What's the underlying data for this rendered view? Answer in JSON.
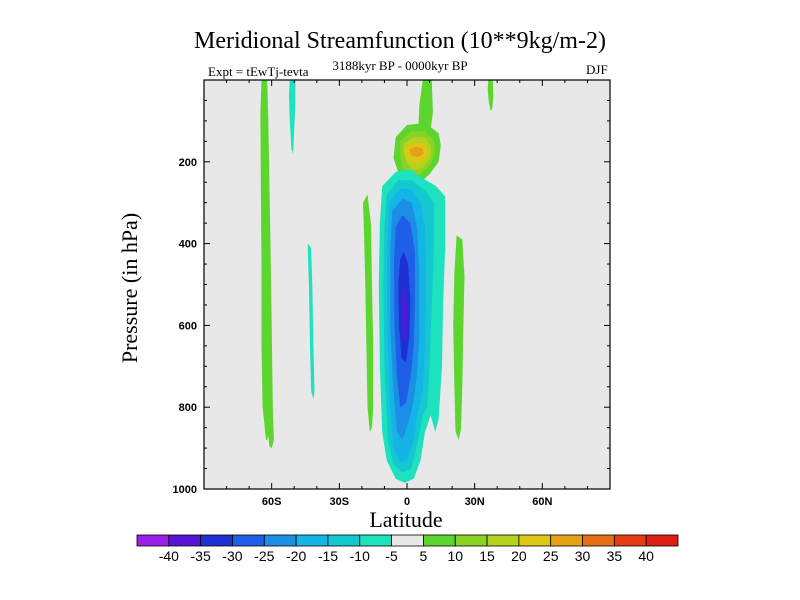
{
  "chart_data": {
    "type": "contour",
    "title": "Meridional Streamfunction (10**9kg/m-2)",
    "subtitle_left": "Expt = tEwTj-tevta",
    "subtitle_center": "3188kyr BP - 0000kyr BP",
    "subtitle_right": "DJF",
    "xlabel": "Latitude",
    "ylabel": "Pressure (in hPa)",
    "xlim": [
      -90,
      90
    ],
    "ylim": [
      1000,
      0
    ],
    "xticks": [
      {
        "value": -60,
        "label": "60S"
      },
      {
        "value": -30,
        "label": "30S"
      },
      {
        "value": 0,
        "label": "0"
      },
      {
        "value": 30,
        "label": "30N"
      },
      {
        "value": 60,
        "label": "60N"
      }
    ],
    "yticks": [
      {
        "value": 200,
        "label": "200"
      },
      {
        "value": 400,
        "label": "400"
      },
      {
        "value": 600,
        "label": "600"
      },
      {
        "value": 800,
        "label": "800"
      },
      {
        "value": 1000,
        "label": "1000"
      }
    ],
    "background_color": "#e8e8e8",
    "colorbar": {
      "levels": [
        "-40",
        "-35",
        "-30",
        "-25",
        "-20",
        "-15",
        "-10",
        "-5",
        "5",
        "10",
        "15",
        "20",
        "25",
        "30",
        "35",
        "40"
      ],
      "colors": [
        "#9b1fe8",
        "#5a14d6",
        "#1e2fd4",
        "#1f5ee6",
        "#1d8ee6",
        "#14b4e6",
        "#14c8d2",
        "#1ee1be",
        "#e8e8e8",
        "#5cd62e",
        "#8ad223",
        "#b4d21e",
        "#dcc814",
        "#e6a014",
        "#e66e14",
        "#e63c14",
        "#dc1e14"
      ]
    },
    "features": [
      {
        "name": "sh-highlat-positive",
        "level": 5,
        "color": "#5cd62e",
        "lat": [
          -65,
          -62,
          -61,
          -61,
          -62,
          -62,
          -64,
          -64,
          -63,
          -62,
          -61,
          -61,
          -62,
          -63,
          -64,
          -65,
          -65,
          -65
        ],
        "p": [
          0,
          0,
          80,
          200,
          350,
          500,
          650,
          800,
          850,
          900,
          900,
          850,
          800,
          650,
          500,
          350,
          200,
          80
        ],
        "outline": [
          [
            -64.5,
            0
          ],
          [
            -62,
            0
          ],
          [
            -61.5,
            100
          ],
          [
            -61,
            250
          ],
          [
            -60.5,
            400
          ],
          [
            -60,
            600
          ],
          [
            -59.5,
            800
          ],
          [
            -59,
            880
          ],
          [
            -60,
            900
          ],
          [
            -61,
            895
          ],
          [
            -61.5,
            870
          ],
          [
            -62,
            880
          ],
          [
            -62.5,
            880
          ],
          [
            -64,
            800
          ],
          [
            -64.5,
            650
          ],
          [
            -64.5,
            450
          ],
          [
            -64.8,
            250
          ],
          [
            -65,
            80
          ]
        ]
      },
      {
        "name": "sh-upper-negative",
        "level": -5,
        "color": "#1ee1be",
        "outline": [
          [
            -52,
            0
          ],
          [
            -49.5,
            0
          ],
          [
            -49.5,
            60
          ],
          [
            -50,
            120
          ],
          [
            -50.5,
            180
          ],
          [
            -51.2,
            170
          ],
          [
            -52,
            100
          ],
          [
            -52.3,
            40
          ]
        ]
      },
      {
        "name": "sh-midlat-negative",
        "level": -5,
        "color": "#1ee1be",
        "outline": [
          [
            -44,
            400
          ],
          [
            -42.5,
            410
          ],
          [
            -42,
            500
          ],
          [
            -41.5,
            650
          ],
          [
            -41,
            760
          ],
          [
            -41.5,
            780
          ],
          [
            -42.5,
            760
          ],
          [
            -43,
            650
          ],
          [
            -43.5,
            500
          ],
          [
            -44,
            420
          ]
        ]
      },
      {
        "name": "sh-subtropical-positive",
        "level": 5,
        "color": "#5cd62e",
        "outline": [
          [
            -19.5,
            300
          ],
          [
            -17.5,
            280
          ],
          [
            -16,
            350
          ],
          [
            -15.5,
            500
          ],
          [
            -15,
            650
          ],
          [
            -15,
            800
          ],
          [
            -15.5,
            850
          ],
          [
            -16.5,
            860
          ],
          [
            -17.5,
            800
          ],
          [
            -18,
            650
          ],
          [
            -18.5,
            500
          ],
          [
            -19,
            380
          ]
        ]
      },
      {
        "name": "upper-tropical-positive-plume",
        "level": 5,
        "color": "#5cd62e",
        "outline": [
          [
            7,
            0
          ],
          [
            11,
            0
          ],
          [
            11.5,
            80
          ],
          [
            10.5,
            120
          ],
          [
            9,
            140
          ],
          [
            5,
            120
          ],
          [
            5.5,
            60
          ]
        ]
      },
      {
        "name": "upper-positive-cell",
        "level": 10,
        "color": "#5cd62e",
        "outline": [
          [
            -5,
            140
          ],
          [
            0,
            110
          ],
          [
            8,
            105
          ],
          [
            14,
            130
          ],
          [
            15,
            160
          ],
          [
            14,
            200
          ],
          [
            10,
            230
          ],
          [
            4,
            260
          ],
          [
            -1,
            250
          ],
          [
            -4,
            225
          ],
          [
            -6,
            190
          ]
        ]
      },
      {
        "name": "upper-positive-cell-15",
        "level": 15,
        "color": "#8ad223",
        "outline": [
          [
            -3,
            150
          ],
          [
            2,
            125
          ],
          [
            8,
            125
          ],
          [
            12,
            150
          ],
          [
            12.5,
            180
          ],
          [
            10,
            210
          ],
          [
            5,
            235
          ],
          [
            1,
            235
          ],
          [
            -2,
            215
          ],
          [
            -3,
            185
          ]
        ]
      },
      {
        "name": "upper-positive-cell-20",
        "level": 20,
        "color": "#b4d21e",
        "outline": [
          [
            -1.5,
            155
          ],
          [
            3,
            140
          ],
          [
            8,
            140
          ],
          [
            10.5,
            160
          ],
          [
            10.5,
            190
          ],
          [
            7,
            215
          ],
          [
            3,
            220
          ],
          [
            0,
            205
          ],
          [
            -1.5,
            180
          ]
        ]
      },
      {
        "name": "upper-positive-cell-25",
        "level": 25,
        "color": "#dcc814",
        "outline": [
          [
            -1,
            165
          ],
          [
            3,
            152
          ],
          [
            8,
            155
          ],
          [
            9.5,
            175
          ],
          [
            8,
            195
          ],
          [
            4,
            205
          ],
          [
            1,
            198
          ],
          [
            -1,
            182
          ]
        ]
      },
      {
        "name": "upper-positive-cell-30",
        "level": 30,
        "color": "#e6a014",
        "outline": [
          [
            1,
            170
          ],
          [
            4,
            162
          ],
          [
            7,
            168
          ],
          [
            7.5,
            180
          ],
          [
            5,
            188
          ],
          [
            2,
            186
          ]
        ]
      },
      {
        "name": "tropical-negative-cell",
        "level": -5,
        "color": "#1ee1be",
        "outline": [
          [
            -11,
            260
          ],
          [
            -5,
            225
          ],
          [
            1,
            218
          ],
          [
            7,
            240
          ],
          [
            13,
            260
          ],
          [
            17,
            285
          ],
          [
            17,
            400
          ],
          [
            16,
            550
          ],
          [
            15.5,
            700
          ],
          [
            14,
            830
          ],
          [
            12.5,
            860
          ],
          [
            10.5,
            820
          ],
          [
            8,
            860
          ],
          [
            6,
            930
          ],
          [
            3,
            975
          ],
          [
            -1,
            985
          ],
          [
            -5,
            975
          ],
          [
            -9,
            930
          ],
          [
            -11,
            860
          ],
          [
            -12,
            700
          ],
          [
            -12.5,
            500
          ],
          [
            -12,
            350
          ]
        ]
      },
      {
        "name": "tropical-negative-cell-10",
        "level": -10,
        "color": "#14c8d2",
        "outline": [
          [
            -9,
            280
          ],
          [
            -4,
            245
          ],
          [
            2,
            245
          ],
          [
            8,
            270
          ],
          [
            12,
            300
          ],
          [
            12,
            400
          ],
          [
            11,
            550
          ],
          [
            10,
            700
          ],
          [
            9,
            800
          ],
          [
            7,
            820
          ],
          [
            5,
            880
          ],
          [
            2,
            950
          ],
          [
            -2,
            960
          ],
          [
            -6,
            940
          ],
          [
            -8.5,
            880
          ],
          [
            -10,
            700
          ],
          [
            -10.5,
            500
          ],
          [
            -10,
            360
          ]
        ]
      },
      {
        "name": "tropical-negative-cell-15",
        "level": -15,
        "color": "#14b4e6",
        "outline": [
          [
            -8,
            300
          ],
          [
            -3,
            265
          ],
          [
            2,
            268
          ],
          [
            6,
            300
          ],
          [
            8,
            360
          ],
          [
            8.5,
            500
          ],
          [
            8,
            650
          ],
          [
            7,
            760
          ],
          [
            5,
            810
          ],
          [
            3,
            880
          ],
          [
            0,
            930
          ],
          [
            -3,
            935
          ],
          [
            -6,
            900
          ],
          [
            -7.5,
            800
          ],
          [
            -8.5,
            650
          ],
          [
            -9,
            480
          ]
        ]
      },
      {
        "name": "tropical-negative-cell-20",
        "level": -20,
        "color": "#1d8ee6",
        "outline": [
          [
            -6.5,
            320
          ],
          [
            -2,
            290
          ],
          [
            2,
            300
          ],
          [
            4.5,
            360
          ],
          [
            5.5,
            480
          ],
          [
            5.5,
            620
          ],
          [
            4.5,
            720
          ],
          [
            3,
            780
          ],
          [
            1,
            830
          ],
          [
            -2,
            880
          ],
          [
            -4.5,
            860
          ],
          [
            -6,
            760
          ],
          [
            -7.5,
            600
          ],
          [
            -7.5,
            420
          ]
        ]
      },
      {
        "name": "tropical-negative-cell-25",
        "level": -25,
        "color": "#1f5ee6",
        "outline": [
          [
            -5,
            360
          ],
          [
            -2,
            330
          ],
          [
            1.5,
            350
          ],
          [
            3.5,
            420
          ],
          [
            3.5,
            540
          ],
          [
            3,
            650
          ],
          [
            1.5,
            730
          ],
          [
            -0.5,
            790
          ],
          [
            -3,
            800
          ],
          [
            -4.5,
            720
          ],
          [
            -5.5,
            600
          ],
          [
            -5.8,
            450
          ]
        ]
      },
      {
        "name": "tropical-negative-cell-30",
        "level": -30,
        "color": "#1e2fd4",
        "outline": [
          [
            -3,
            440
          ],
          [
            -1.5,
            420
          ],
          [
            0.5,
            450
          ],
          [
            1.5,
            540
          ],
          [
            1,
            630
          ],
          [
            -0.5,
            690
          ],
          [
            -2.5,
            680
          ],
          [
            -3.5,
            600
          ],
          [
            -3.8,
            500
          ]
        ]
      },
      {
        "name": "tropical-negative-cell-35",
        "level": -35,
        "color": "#5a14d6",
        "outline": [
          [
            -2,
            520
          ],
          [
            -1,
            510
          ],
          [
            0,
            550
          ],
          [
            -0.3,
            620
          ],
          [
            -1.2,
            640
          ],
          [
            -2,
            600
          ]
        ]
      },
      {
        "name": "nh-subtropical-positive",
        "level": 5,
        "color": "#5cd62e",
        "outline": [
          [
            22,
            380
          ],
          [
            24.5,
            390
          ],
          [
            25.5,
            480
          ],
          [
            25,
            600
          ],
          [
            24.5,
            750
          ],
          [
            24,
            850
          ],
          [
            23,
            880
          ],
          [
            21.5,
            860
          ],
          [
            21,
            750
          ],
          [
            20.5,
            600
          ],
          [
            21,
            470
          ]
        ]
      },
      {
        "name": "nh-upper-positive",
        "level": 5,
        "color": "#5cd62e",
        "outline": [
          [
            36,
            0
          ],
          [
            38,
            0
          ],
          [
            38.3,
            40
          ],
          [
            37.8,
            70
          ],
          [
            37,
            75
          ],
          [
            36.3,
            55
          ],
          [
            35.8,
            25
          ]
        ]
      }
    ]
  }
}
